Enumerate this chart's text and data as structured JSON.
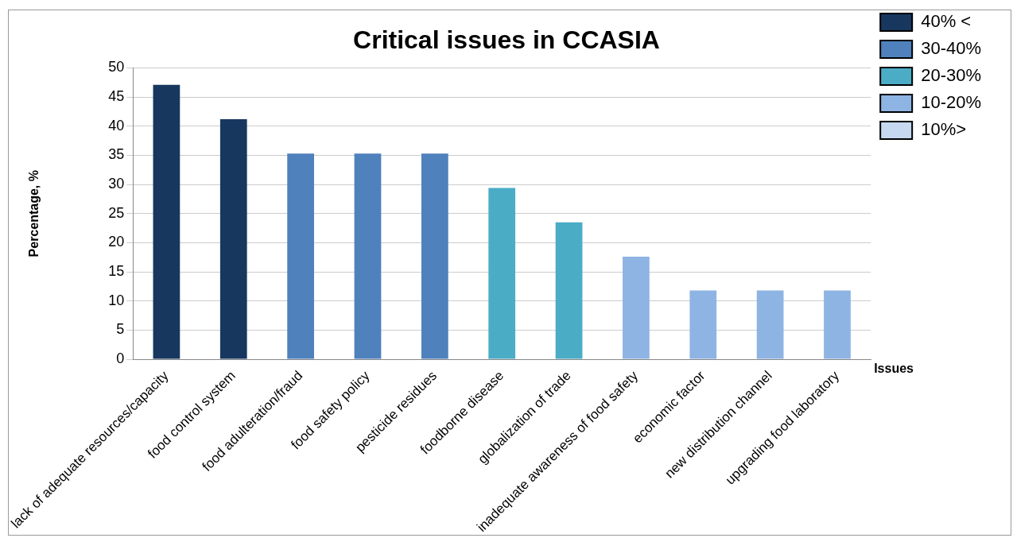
{
  "chart_data": {
    "type": "bar",
    "title": "Critical issues in CCASIA",
    "xlabel": "Issues",
    "ylabel": "Percentage, %",
    "categories": [
      "lack of adequate resources/capacity",
      "food control system",
      "food adulteration/fraud",
      "food safety policy",
      "pesticide residues",
      "foodborne disease",
      "globalization of trade",
      "inadequate awareness of food safety",
      "economic factor",
      "new distribution channel",
      "upgrading food laboratory"
    ],
    "series": [
      {
        "name": "40% <",
        "color": "#17375e",
        "values": [
          47.1,
          41.2,
          null,
          null,
          null,
          null,
          null,
          null,
          null,
          null,
          null
        ]
      },
      {
        "name": "30-40%",
        "color": "#4f81bd",
        "values": [
          null,
          null,
          35.3,
          35.3,
          35.3,
          null,
          null,
          null,
          null,
          null,
          null
        ]
      },
      {
        "name": "20-30%",
        "color": "#4bacc6",
        "values": [
          null,
          null,
          null,
          null,
          null,
          29.4,
          23.5,
          null,
          null,
          null,
          null
        ]
      },
      {
        "name": "10-20%",
        "color": "#8eb4e3",
        "values": [
          null,
          null,
          null,
          null,
          null,
          null,
          null,
          17.6,
          11.8,
          11.8,
          11.8
        ]
      },
      {
        "name": "10%>",
        "color": "#c6d9f1",
        "values": [
          null,
          null,
          null,
          null,
          null,
          null,
          null,
          null,
          null,
          null,
          null
        ]
      }
    ],
    "ylim": [
      0,
      50
    ],
    "yticks": [
      0,
      5,
      10,
      15,
      20,
      25,
      30,
      35,
      40,
      45,
      50
    ],
    "grid": "y",
    "legend": "top right"
  }
}
